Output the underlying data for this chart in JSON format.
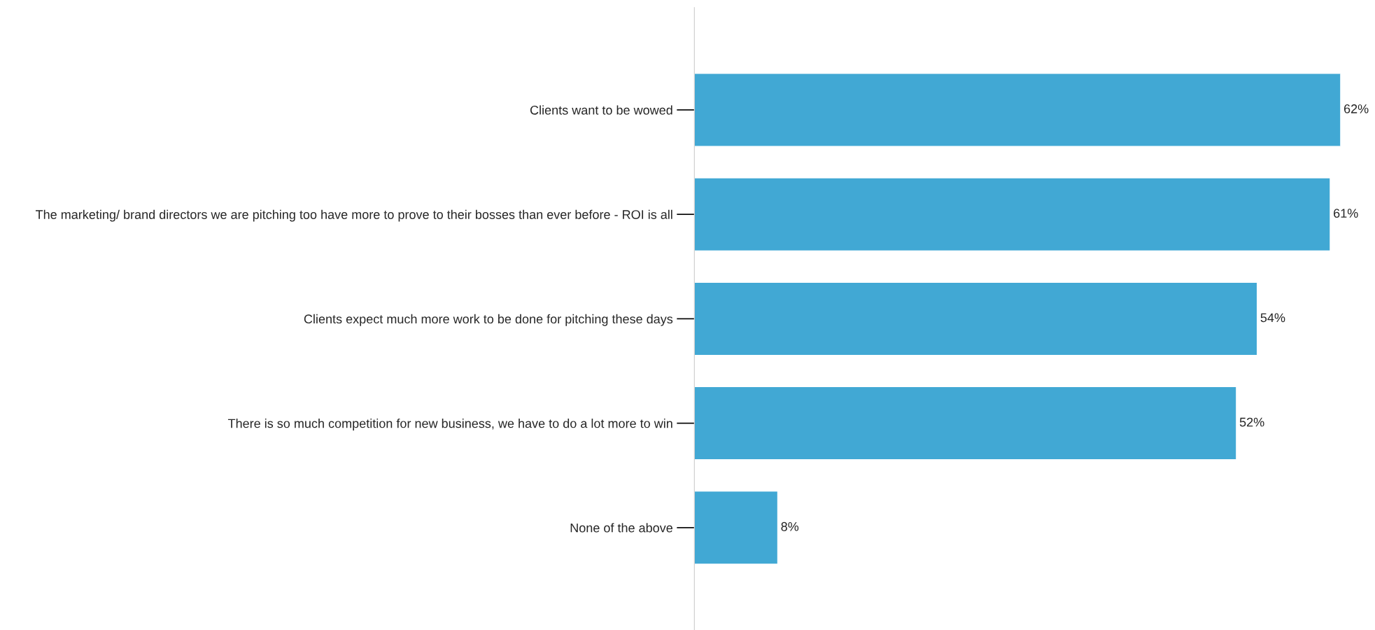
{
  "chart_data": {
    "type": "bar",
    "orientation": "horizontal",
    "categories": [
      "Clients want to be wowed",
      "The marketing/ brand directors we are pitching too have more to prove to their bosses than ever before - ROI is all",
      "Clients expect much more work to be done for pitching these days",
      "There is so much competition for new business, we have to do a lot more to win",
      "None of the above"
    ],
    "values": [
      62,
      61,
      54,
      52,
      8
    ],
    "value_labels": [
      "62%",
      "61%",
      "54%",
      "52%",
      "8%"
    ],
    "color": "#41a8d4"
  }
}
